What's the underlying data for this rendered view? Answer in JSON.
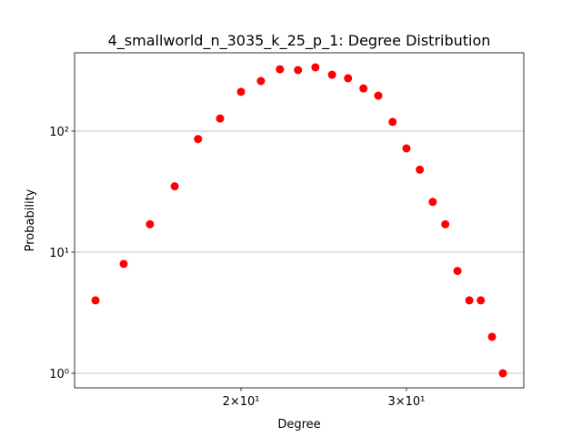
{
  "chart_data": {
    "type": "scatter",
    "title": "4_smallworld_n_3035_k_25_p_1: Degree Distribution",
    "xlabel": "Degree",
    "ylabel": "Probability",
    "series": [
      {
        "name": "degree",
        "color": "#ff0000",
        "x": [
          14,
          15,
          16,
          17,
          18,
          19,
          20,
          21,
          22,
          23,
          24,
          25,
          26,
          27,
          28,
          29,
          30,
          31,
          32,
          33,
          34,
          35,
          36,
          37,
          38
        ],
        "values": [
          4,
          8,
          17,
          35,
          86,
          127,
          211,
          259,
          324,
          319,
          336,
          292,
          273,
          225,
          196,
          119,
          72,
          48,
          26,
          17,
          7,
          4,
          4,
          2,
          1
        ]
      }
    ],
    "xscale": "log",
    "yscale": "log",
    "xlim": [
      13.3,
      40
    ],
    "ylim": [
      0.758,
      443
    ],
    "xticks": [
      {
        "value": 20,
        "label": "2×10¹"
      },
      {
        "value": 30,
        "label": "3×10¹"
      }
    ],
    "yticks": [
      {
        "value": 1,
        "label": "10⁰"
      },
      {
        "value": 10,
        "label": "10¹"
      },
      {
        "value": 100,
        "label": "10²"
      }
    ],
    "grid": "y"
  }
}
